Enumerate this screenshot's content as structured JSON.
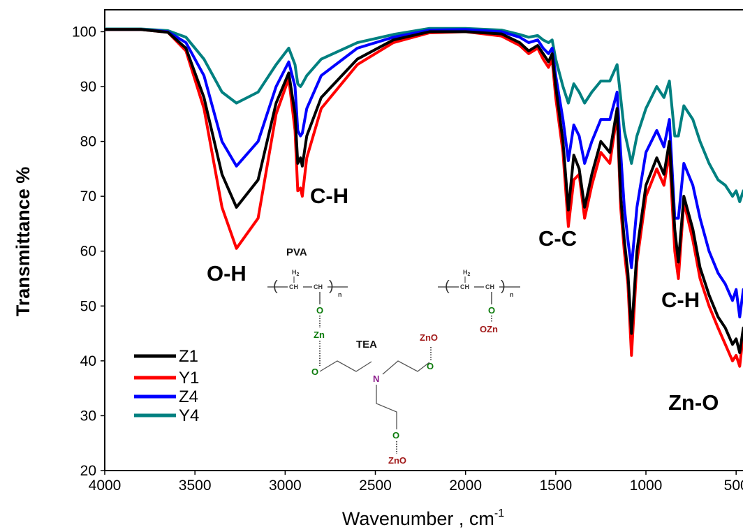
{
  "chart_data": {
    "type": "line",
    "xlabel": "Wavenumber , cm",
    "xlabel_sup": "-1",
    "ylabel": "Transmittance %",
    "xlim": [
      4000,
      400
    ],
    "ylim": [
      20,
      104
    ],
    "x_ticks": [
      4000,
      3500,
      3000,
      2500,
      2000,
      1500,
      1000,
      500
    ],
    "y_ticks": [
      20,
      30,
      40,
      50,
      60,
      70,
      80,
      90,
      100
    ],
    "x_reversed": true,
    "grid": false,
    "legend_position": "bottom-left",
    "series": [
      {
        "name": "Z1",
        "color": "#000000",
        "points": [
          [
            4000,
            100.4
          ],
          [
            3800,
            100.4
          ],
          [
            3650,
            99.9
          ],
          [
            3550,
            97
          ],
          [
            3450,
            88
          ],
          [
            3350,
            74
          ],
          [
            3270,
            68
          ],
          [
            3150,
            73
          ],
          [
            3050,
            87
          ],
          [
            2980,
            92.5
          ],
          [
            2945,
            85
          ],
          [
            2930,
            76
          ],
          [
            2915,
            77
          ],
          [
            2905,
            75.5
          ],
          [
            2880,
            81
          ],
          [
            2800,
            88
          ],
          [
            2600,
            95
          ],
          [
            2400,
            98.5
          ],
          [
            2200,
            100
          ],
          [
            2000,
            100
          ],
          [
            1800,
            99.6
          ],
          [
            1700,
            98
          ],
          [
            1650,
            96.5
          ],
          [
            1600,
            97.5
          ],
          [
            1570,
            96
          ],
          [
            1540,
            94.5
          ],
          [
            1520,
            96
          ],
          [
            1500,
            90
          ],
          [
            1460,
            80
          ],
          [
            1430,
            67.5
          ],
          [
            1400,
            77.5
          ],
          [
            1370,
            75
          ],
          [
            1340,
            68
          ],
          [
            1300,
            74
          ],
          [
            1250,
            80
          ],
          [
            1200,
            78
          ],
          [
            1160,
            86
          ],
          [
            1140,
            70
          ],
          [
            1120,
            62
          ],
          [
            1100,
            56
          ],
          [
            1080,
            45
          ],
          [
            1050,
            60
          ],
          [
            1000,
            72
          ],
          [
            940,
            77
          ],
          [
            900,
            74
          ],
          [
            870,
            80
          ],
          [
            840,
            64
          ],
          [
            820,
            58
          ],
          [
            790,
            70
          ],
          [
            740,
            64
          ],
          [
            700,
            57
          ],
          [
            650,
            52
          ],
          [
            600,
            48
          ],
          [
            560,
            46
          ],
          [
            520,
            43
          ],
          [
            500,
            44
          ],
          [
            480,
            41.5
          ],
          [
            460,
            46
          ],
          [
            440,
            43
          ],
          [
            420,
            38
          ]
        ]
      },
      {
        "name": "Y1",
        "color": "#ff0000",
        "points": [
          [
            4000,
            100.4
          ],
          [
            3800,
            100.4
          ],
          [
            3650,
            99.9
          ],
          [
            3550,
            96.5
          ],
          [
            3450,
            86
          ],
          [
            3350,
            68
          ],
          [
            3270,
            60.5
          ],
          [
            3150,
            66
          ],
          [
            3050,
            85
          ],
          [
            2980,
            91.5
          ],
          [
            2945,
            82
          ],
          [
            2930,
            71
          ],
          [
            2915,
            71.5
          ],
          [
            2905,
            70
          ],
          [
            2880,
            77
          ],
          [
            2800,
            86
          ],
          [
            2600,
            94
          ],
          [
            2400,
            98
          ],
          [
            2200,
            99.8
          ],
          [
            2000,
            100
          ],
          [
            1800,
            99.2
          ],
          [
            1700,
            97.5
          ],
          [
            1650,
            96
          ],
          [
            1600,
            97
          ],
          [
            1570,
            95
          ],
          [
            1540,
            93.5
          ],
          [
            1520,
            95
          ],
          [
            1500,
            88
          ],
          [
            1460,
            78
          ],
          [
            1430,
            64.5
          ],
          [
            1400,
            73
          ],
          [
            1370,
            74
          ],
          [
            1340,
            66
          ],
          [
            1300,
            72
          ],
          [
            1250,
            78
          ],
          [
            1200,
            76
          ],
          [
            1160,
            85
          ],
          [
            1140,
            68
          ],
          [
            1120,
            60
          ],
          [
            1100,
            54
          ],
          [
            1080,
            41
          ],
          [
            1050,
            58
          ],
          [
            1000,
            70
          ],
          [
            940,
            75
          ],
          [
            900,
            72
          ],
          [
            870,
            78
          ],
          [
            840,
            60
          ],
          [
            820,
            55
          ],
          [
            790,
            69
          ],
          [
            740,
            62
          ],
          [
            700,
            55
          ],
          [
            650,
            50
          ],
          [
            600,
            46
          ],
          [
            560,
            43
          ],
          [
            520,
            40
          ],
          [
            500,
            41
          ],
          [
            480,
            39
          ],
          [
            460,
            45
          ],
          [
            440,
            41
          ],
          [
            420,
            36
          ]
        ]
      },
      {
        "name": "Z4",
        "color": "#0000ff",
        "points": [
          [
            4000,
            100.4
          ],
          [
            3800,
            100.4
          ],
          [
            3650,
            100
          ],
          [
            3550,
            98
          ],
          [
            3450,
            92
          ],
          [
            3350,
            80
          ],
          [
            3270,
            75.5
          ],
          [
            3150,
            80
          ],
          [
            3050,
            90
          ],
          [
            2980,
            94.5
          ],
          [
            2945,
            90
          ],
          [
            2930,
            82
          ],
          [
            2915,
            81
          ],
          [
            2905,
            81.5
          ],
          [
            2880,
            86
          ],
          [
            2800,
            92
          ],
          [
            2600,
            97
          ],
          [
            2400,
            99
          ],
          [
            2200,
            100.3
          ],
          [
            2000,
            100.4
          ],
          [
            1800,
            100
          ],
          [
            1700,
            99
          ],
          [
            1650,
            98
          ],
          [
            1600,
            98.5
          ],
          [
            1570,
            97
          ],
          [
            1540,
            96
          ],
          [
            1520,
            97
          ],
          [
            1500,
            92
          ],
          [
            1460,
            84
          ],
          [
            1430,
            76.5
          ],
          [
            1400,
            83
          ],
          [
            1370,
            81
          ],
          [
            1340,
            76
          ],
          [
            1300,
            80
          ],
          [
            1250,
            84
          ],
          [
            1200,
            84
          ],
          [
            1160,
            89
          ],
          [
            1140,
            78
          ],
          [
            1120,
            68
          ],
          [
            1100,
            62
          ],
          [
            1080,
            57
          ],
          [
            1050,
            68
          ],
          [
            1000,
            78
          ],
          [
            940,
            82
          ],
          [
            900,
            79
          ],
          [
            870,
            84
          ],
          [
            840,
            66
          ],
          [
            820,
            66
          ],
          [
            790,
            76
          ],
          [
            740,
            72
          ],
          [
            700,
            66
          ],
          [
            650,
            60
          ],
          [
            600,
            56
          ],
          [
            560,
            54
          ],
          [
            520,
            51
          ],
          [
            500,
            53
          ],
          [
            480,
            48
          ],
          [
            460,
            53
          ],
          [
            440,
            51
          ],
          [
            420,
            46
          ]
        ]
      },
      {
        "name": "Y4",
        "color": "#008080",
        "points": [
          [
            4000,
            100.5
          ],
          [
            3800,
            100.5
          ],
          [
            3650,
            100.2
          ],
          [
            3550,
            99
          ],
          [
            3450,
            95
          ],
          [
            3350,
            89
          ],
          [
            3270,
            87
          ],
          [
            3150,
            89
          ],
          [
            3050,
            94
          ],
          [
            2980,
            97
          ],
          [
            2945,
            94
          ],
          [
            2930,
            90.5
          ],
          [
            2915,
            90
          ],
          [
            2905,
            90.5
          ],
          [
            2880,
            92
          ],
          [
            2800,
            95
          ],
          [
            2600,
            98
          ],
          [
            2400,
            99.5
          ],
          [
            2200,
            100.6
          ],
          [
            2000,
            100.6
          ],
          [
            1800,
            100.3
          ],
          [
            1700,
            99.5
          ],
          [
            1650,
            99
          ],
          [
            1600,
            99.3
          ],
          [
            1570,
            98.5
          ],
          [
            1540,
            98
          ],
          [
            1520,
            98.5
          ],
          [
            1500,
            95
          ],
          [
            1460,
            90
          ],
          [
            1430,
            87
          ],
          [
            1400,
            90.5
          ],
          [
            1370,
            89
          ],
          [
            1340,
            87
          ],
          [
            1300,
            89
          ],
          [
            1250,
            91
          ],
          [
            1200,
            91
          ],
          [
            1160,
            94
          ],
          [
            1140,
            88
          ],
          [
            1120,
            82
          ],
          [
            1100,
            79
          ],
          [
            1080,
            76
          ],
          [
            1050,
            81
          ],
          [
            1000,
            86
          ],
          [
            940,
            90
          ],
          [
            900,
            88
          ],
          [
            870,
            91
          ],
          [
            840,
            81
          ],
          [
            820,
            81
          ],
          [
            790,
            86.5
          ],
          [
            740,
            84
          ],
          [
            700,
            80
          ],
          [
            650,
            76
          ],
          [
            600,
            73
          ],
          [
            560,
            72
          ],
          [
            520,
            70
          ],
          [
            500,
            71
          ],
          [
            480,
            69
          ],
          [
            460,
            71
          ],
          [
            440,
            70
          ],
          [
            420,
            69
          ]
        ]
      }
    ],
    "annotations": [
      "O-H",
      "C-H",
      "C-C",
      "C-H",
      "Zn-O"
    ]
  },
  "inset": {
    "pva_label": "PVA",
    "tea_label": "TEA",
    "h2": "H",
    "h2_sub": "2",
    "ch": "CH",
    "n": "n",
    "o": "O",
    "zn": "Zn",
    "n_atom": "N",
    "zno": "ZnO",
    "ozn": "OZn"
  }
}
